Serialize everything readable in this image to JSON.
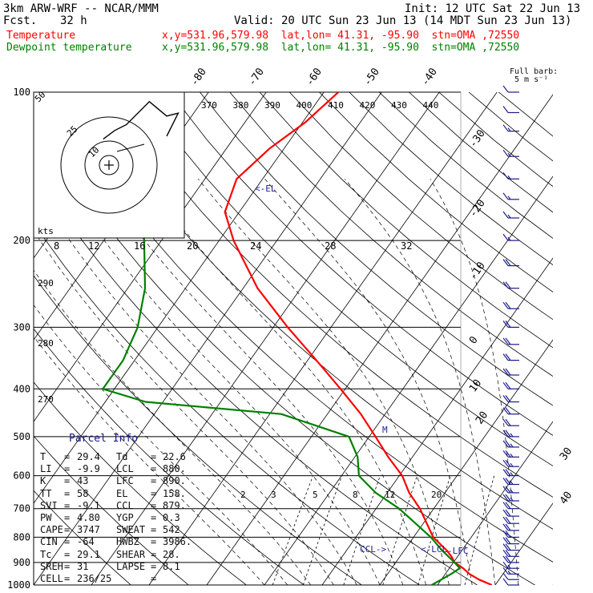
{
  "header": {
    "model": "3km ARW-WRF -- NCAR/MMM",
    "init": "Init: 12 UTC Sat 22 Jun 13",
    "fcst_label": "Fcst.",
    "fcst_value": "32 h",
    "valid": "Valid: 20 UTC Sun 23 Jun 13 (14 MDT Sun 23 Jun 13)"
  },
  "legend": [
    {
      "name": "Temperature",
      "info": "x,y=531.96,579.98  lat,lon= 41.31, -95.90  stn=OMA ,72550",
      "color": "#ff0000"
    },
    {
      "name": "Dewpoint temperature",
      "info": "x,y=531.96,579.98  lat,lon= 41.31, -95.90  stn=OMA ,72550",
      "color": "#008000"
    }
  ],
  "barb_key": {
    "title": "Full barb:",
    "value": "5 m s⁻¹"
  },
  "chart_data": {
    "type": "line",
    "title": "",
    "subtitle": "",
    "x_scale": "skew-T temperature (°C)",
    "y_scale": "log pressure (hPa)",
    "ylim": [
      1000,
      100
    ],
    "xlim_at_1000": [
      -40,
      50
    ],
    "pressure_ticks": [
      1000,
      900,
      800,
      700,
      600,
      500,
      400,
      300,
      200,
      100
    ],
    "isotherm_labels_top": [
      -80,
      -70,
      -60,
      -50,
      -40
    ],
    "isotherm_labels_right": [
      -30,
      -20,
      -10,
      0,
      10,
      20,
      30,
      40
    ],
    "theta_labels": [
      "270",
      "280",
      "290"
    ],
    "theta_top_labels": [
      "370",
      "380",
      "390",
      "400",
      "410",
      "420",
      "430",
      "440"
    ],
    "mixing_ratio_labels": [
      "2",
      "3",
      "5",
      "8",
      "12",
      "20"
    ],
    "annotations": [
      "<-EL",
      "<-LCL",
      "-LFC",
      "CCL->",
      "M"
    ],
    "series": [
      {
        "name": "Temperature",
        "color": "#ff0000",
        "points": [
          [
            1000,
            29.4
          ],
          [
            975,
            26.5
          ],
          [
            950,
            24.2
          ],
          [
            925,
            22.4
          ],
          [
            900,
            20.2
          ],
          [
            875,
            18.9
          ],
          [
            850,
            17.3
          ],
          [
            800,
            13.4
          ],
          [
            750,
            10.6
          ],
          [
            700,
            7.6
          ],
          [
            650,
            3.8
          ],
          [
            600,
            0.5
          ],
          [
            550,
            -4.2
          ],
          [
            500,
            -8.9
          ],
          [
            450,
            -14.2
          ],
          [
            400,
            -20.8
          ],
          [
            350,
            -28.5
          ],
          [
            300,
            -37.5
          ],
          [
            250,
            -47.5
          ],
          [
            200,
            -57.5
          ],
          [
            175,
            -62.5
          ],
          [
            150,
            -64.5
          ],
          [
            130,
            -62.5
          ],
          [
            115,
            -59.5
          ],
          [
            100,
            -57.5
          ]
        ]
      },
      {
        "name": "Dewpoint temperature",
        "color": "#008000",
        "points": [
          [
            1000,
            19.0
          ],
          [
            975,
            20.0
          ],
          [
            950,
            21.0
          ],
          [
            925,
            21.8
          ],
          [
            900,
            20.2
          ],
          [
            850,
            16.5
          ],
          [
            800,
            13.0
          ],
          [
            700,
            4.0
          ],
          [
            650,
            -2.0
          ],
          [
            600,
            -7.0
          ],
          [
            550,
            -9.5
          ],
          [
            500,
            -13.5
          ],
          [
            450,
            -28.0
          ],
          [
            425,
            -53.0
          ],
          [
            400,
            -62.0
          ],
          [
            350,
            -62.0
          ],
          [
            300,
            -63.5
          ],
          [
            250,
            -67.0
          ],
          [
            200,
            -73.0
          ],
          [
            150,
            -81.0
          ],
          [
            125,
            -87.0
          ],
          [
            100,
            -92.0
          ]
        ]
      }
    ],
    "wind_barbs_kt": {
      "levels": [
        1000,
        975,
        950,
        925,
        900,
        875,
        850,
        825,
        800,
        775,
        750,
        725,
        700,
        675,
        650,
        625,
        600,
        575,
        550,
        525,
        500,
        475,
        450,
        425,
        400,
        375,
        350,
        325,
        300,
        275,
        250,
        225,
        200,
        180,
        165,
        150,
        135,
        120,
        110,
        100
      ],
      "speeds": [
        10,
        10,
        15,
        15,
        20,
        20,
        20,
        20,
        20,
        20,
        20,
        20,
        20,
        25,
        25,
        25,
        25,
        25,
        25,
        25,
        25,
        20,
        20,
        20,
        20,
        20,
        20,
        20,
        20,
        20,
        20,
        20,
        15,
        15,
        15,
        15,
        15,
        15,
        10,
        10
      ]
    },
    "hodograph": {
      "ring_labels": [
        "10",
        "25",
        "50"
      ],
      "unit_label": "kts",
      "points": [
        [
          -2,
          9
        ],
        [
          2,
          12
        ],
        [
          6,
          14
        ],
        [
          14,
          22
        ],
        [
          20,
          17
        ],
        [
          24,
          18
        ],
        [
          22,
          14
        ],
        [
          20,
          10
        ]
      ]
    }
  },
  "parcel_info": {
    "title": "Parcel Info",
    "rows": [
      [
        "T",
        "29.4",
        "Td",
        "22.6"
      ],
      [
        "LI",
        "-9.9",
        "LCL",
        "880."
      ],
      [
        "K",
        "43",
        "LFC",
        "890."
      ],
      [
        "TT",
        "58",
        "EL",
        "158."
      ],
      [
        "SVI",
        "-9.1",
        "CCL",
        "879."
      ],
      [
        "PW",
        "4.80",
        "YGP",
        "0.3"
      ],
      [
        "CAPE",
        "3747",
        "SWEAT",
        "542"
      ],
      [
        "CIN",
        "-64",
        "HWBZ",
        "3986."
      ],
      [
        "Tc",
        "29.1",
        "SHEAR",
        "28."
      ],
      [
        "SREH",
        "31",
        "LAPSE",
        "8.1"
      ],
      [
        "CELL",
        "236/25",
        "",
        ""
      ]
    ]
  }
}
